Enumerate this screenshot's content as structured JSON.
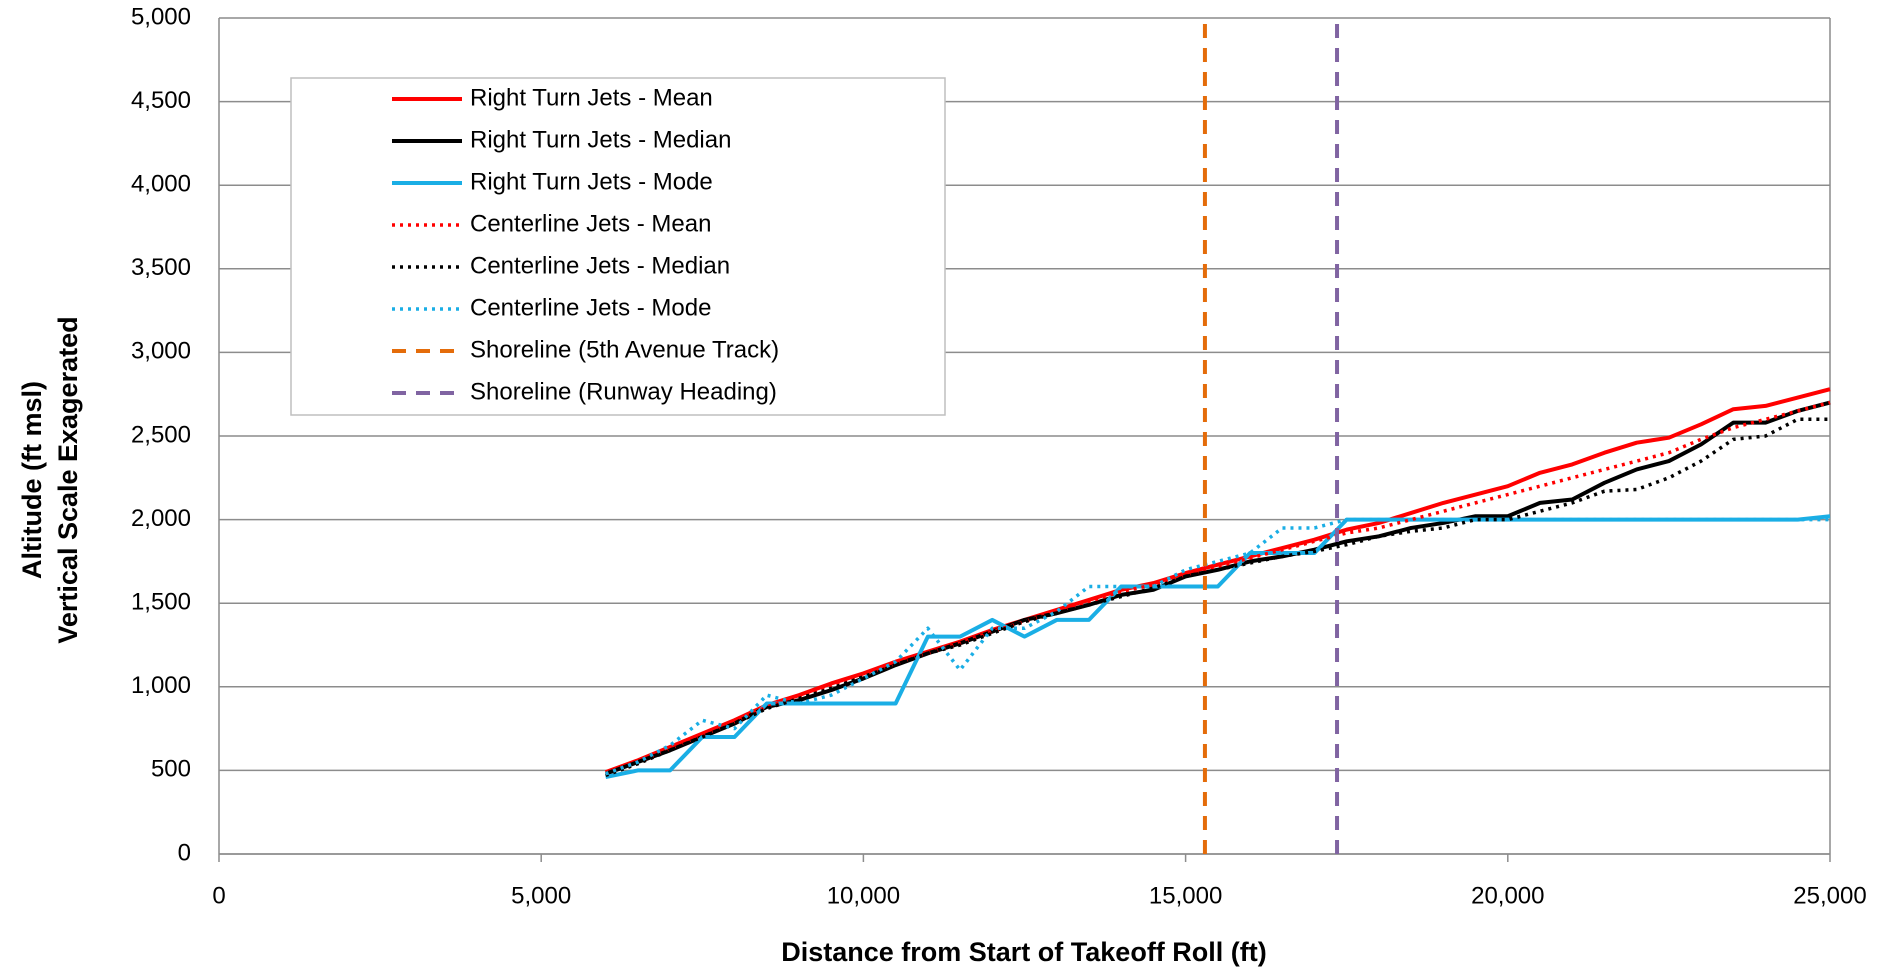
{
  "chart_data": {
    "type": "line",
    "xlabel": "Distance from Start of Takeoff Roll (ft)",
    "ylabel": [
      "Altitude (ft msl)",
      "Vertical Scale Exagerated"
    ],
    "xlim": [
      0,
      25000
    ],
    "xticks": [
      0,
      {
        "value": 5000,
        "label": "5,000"
      },
      {
        "value": 10000,
        "label": "10,000"
      },
      {
        "value": 15000,
        "label": "15,000"
      },
      {
        "value": 20000,
        "label": "20,000"
      },
      {
        "value": 25000,
        "label": "25,000"
      }
    ],
    "ylim": [
      0,
      5000
    ],
    "yticks": [
      0,
      500,
      {
        "value": 1000,
        "label": "1,000"
      },
      {
        "value": 1500,
        "label": "1,500"
      },
      {
        "value": 2000,
        "label": "2,000"
      },
      {
        "value": 2500,
        "label": "2,500"
      },
      {
        "value": 3000,
        "label": "3,000"
      },
      {
        "value": 3500,
        "label": "3,500"
      },
      {
        "value": 4000,
        "label": "4,000"
      },
      {
        "value": 4500,
        "label": "4,500"
      },
      {
        "value": 5000,
        "label": "5,000"
      }
    ],
    "grid": true,
    "legend": "upper left",
    "x": [
      6000,
      6500,
      7000,
      7500,
      8000,
      8500,
      9000,
      9500,
      10000,
      10500,
      11000,
      11500,
      12000,
      12500,
      13000,
      13500,
      14000,
      14500,
      15000,
      15500,
      16000,
      16500,
      17000,
      17500,
      18000,
      18500,
      19000,
      19500,
      20000,
      20500,
      21000,
      21500,
      22000,
      22500,
      23000,
      23500,
      24000,
      24500,
      25000
    ],
    "series": [
      {
        "name": "Right Turn Jets - Mean",
        "color": "#ff0000",
        "line_style": "solid",
        "values": [
          490,
          560,
          640,
          720,
          800,
          890,
          950,
          1020,
          1080,
          1150,
          1210,
          1270,
          1340,
          1400,
          1460,
          1520,
          1580,
          1620,
          1680,
          1730,
          1780,
          1830,
          1880,
          1940,
          1980,
          2040,
          2100,
          2150,
          2200,
          2280,
          2330,
          2400,
          2460,
          2490,
          2570,
          2660,
          2680,
          2730,
          2780
        ]
      },
      {
        "name": "Right Turn Jets - Median",
        "color": "#000000",
        "line_style": "solid",
        "values": [
          480,
          550,
          620,
          700,
          780,
          880,
          920,
          980,
          1050,
          1130,
          1200,
          1260,
          1330,
          1400,
          1440,
          1490,
          1550,
          1580,
          1660,
          1700,
          1750,
          1780,
          1820,
          1870,
          1900,
          1950,
          1980,
          2020,
          2020,
          2100,
          2120,
          2220,
          2300,
          2350,
          2450,
          2580,
          2580,
          2650,
          2700
        ]
      },
      {
        "name": "Right Turn Jets - Mode",
        "color": "#1aaee5",
        "line_style": "solid",
        "values": [
          460,
          500,
          500,
          700,
          700,
          900,
          900,
          900,
          900,
          900,
          1300,
          1300,
          1400,
          1300,
          1400,
          1400,
          1600,
          1600,
          1600,
          1600,
          1800,
          1800,
          1800,
          2000,
          2000,
          2000,
          2000,
          2000,
          2000,
          2000,
          2000,
          2000,
          2000,
          2000,
          2000,
          2000,
          2000,
          2000,
          2020
        ]
      },
      {
        "name": "Centerline Jets - Mean",
        "color": "#ff0000",
        "line_style": "dotted",
        "values": [
          480,
          550,
          630,
          710,
          790,
          880,
          940,
          1010,
          1070,
          1140,
          1200,
          1260,
          1330,
          1390,
          1450,
          1510,
          1570,
          1610,
          1670,
          1720,
          1770,
          1820,
          1870,
          1920,
          1950,
          2000,
          2050,
          2100,
          2150,
          2200,
          2250,
          2300,
          2350,
          2400,
          2480,
          2550,
          2600,
          2650,
          2700
        ]
      },
      {
        "name": "Centerline Jets - Median",
        "color": "#000000",
        "line_style": "dotted",
        "values": [
          470,
          540,
          620,
          700,
          780,
          870,
          930,
          990,
          1060,
          1130,
          1200,
          1250,
          1320,
          1390,
          1440,
          1490,
          1540,
          1590,
          1660,
          1700,
          1740,
          1780,
          1810,
          1850,
          1900,
          1930,
          1950,
          2000,
          2000,
          2050,
          2100,
          2170,
          2180,
          2250,
          2350,
          2480,
          2500,
          2600,
          2600
        ]
      },
      {
        "name": "Centerline Jets - Mode",
        "color": "#1aaee5",
        "line_style": "dotted",
        "values": [
          480,
          550,
          650,
          800,
          750,
          950,
          900,
          950,
          1050,
          1150,
          1350,
          1100,
          1350,
          1350,
          1450,
          1600,
          1600,
          1600,
          1700,
          1750,
          1800,
          1950,
          1950,
          2000,
          2000,
          2000,
          2000,
          2000,
          2000,
          2000,
          2000,
          2000,
          2000,
          2000,
          2000,
          2000,
          2000,
          2000,
          2000
        ]
      },
      {
        "name": "Shoreline (5th Avenue Track)",
        "color": "#e46c0a",
        "line_style": "dashed",
        "x": [
          15300,
          15300
        ],
        "values": [
          0,
          5000
        ]
      },
      {
        "name": "Shoreline (Runway Heading)",
        "color": "#8064a2",
        "line_style": "dashed",
        "x": [
          17350,
          17350
        ],
        "values": [
          0,
          5000
        ]
      }
    ]
  }
}
